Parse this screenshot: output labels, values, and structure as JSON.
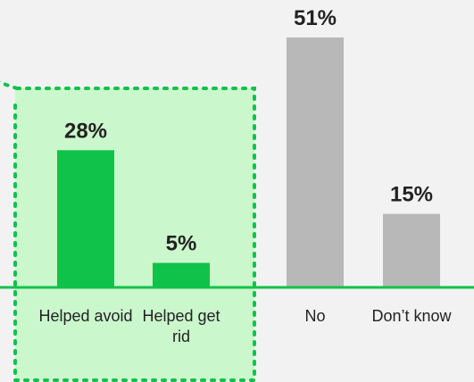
{
  "chart_data": {
    "type": "bar",
    "categories": [
      "Helped avoid",
      "Helped get rid",
      "No",
      "Don’t know"
    ],
    "values": [
      28,
      5,
      51,
      15
    ],
    "value_labels": [
      "28%",
      "5%",
      "51%",
      "15%"
    ],
    "ylim": [
      0,
      51
    ],
    "grid": false,
    "highlight_group": [
      "Helped avoid",
      "Helped get rid"
    ],
    "colors": {
      "highlighted_bar": "#11c24a",
      "other_bar": "#b8b8b8",
      "highlight_box_fill": "#cbf7cc",
      "highlight_box_border": "#11c24a",
      "baseline": "#11c24a",
      "background": "#f2f2f2",
      "label_text": "#222222"
    }
  }
}
